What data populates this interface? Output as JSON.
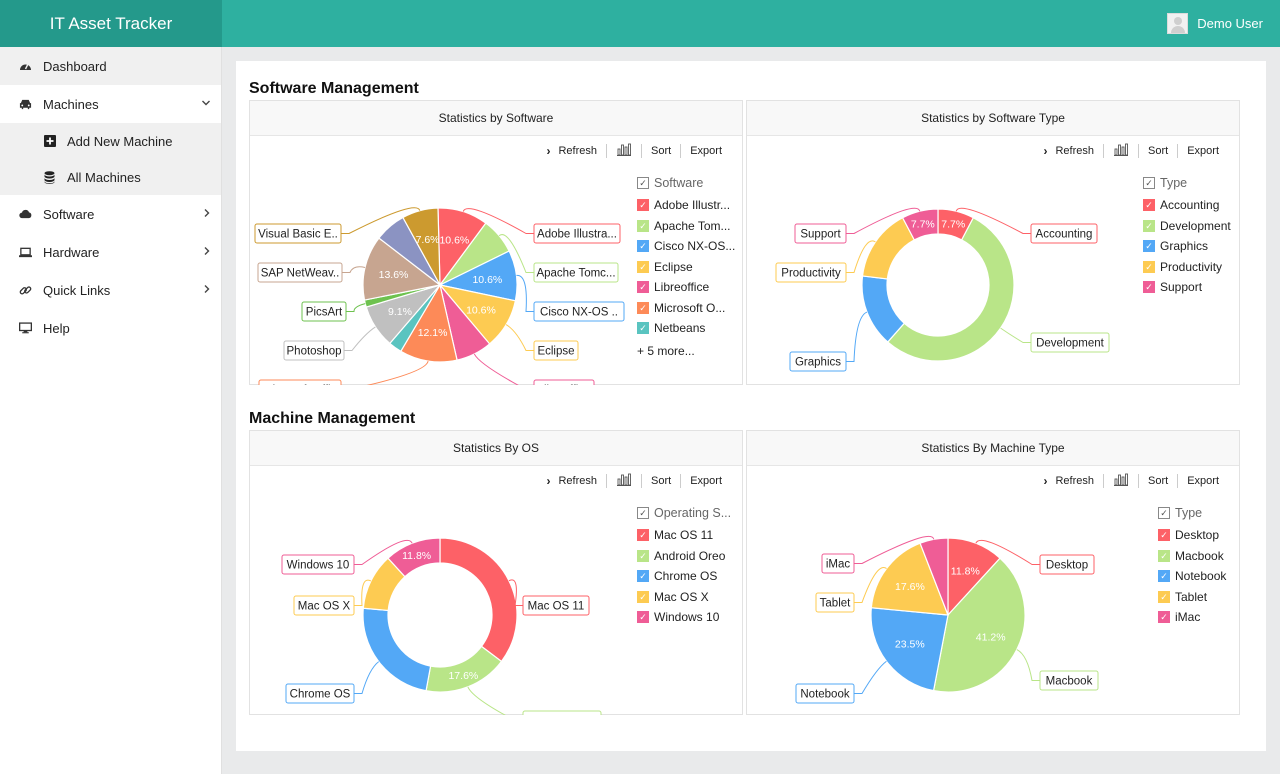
{
  "app": {
    "title": "IT Asset Tracker",
    "user_name": "Demo User"
  },
  "sidebar": {
    "items": [
      {
        "label": "Dashboard",
        "icon": "dashboard-icon"
      },
      {
        "label": "Machines",
        "icon": "car-icon"
      },
      {
        "label": "Add New Machine",
        "icon": "plus-square-icon"
      },
      {
        "label": "All Machines",
        "icon": "database-icon"
      },
      {
        "label": "Software",
        "icon": "cloud-icon"
      },
      {
        "label": "Hardware",
        "icon": "laptop-icon"
      },
      {
        "label": "Quick Links",
        "icon": "link-icon"
      },
      {
        "label": "Help",
        "icon": "desktop-icon"
      }
    ]
  },
  "sections": {
    "software": "Software Management",
    "machine": "Machine Management"
  },
  "toolbar": {
    "refresh": "Refresh",
    "sort": "Sort",
    "export": "Export"
  },
  "cards": [
    {
      "title": "Statistics by Software",
      "legend_header": "Software",
      "legend": [
        "Adobe Illustr...",
        "Apache Tom...",
        "Cisco NX-OS...",
        "Eclipse",
        "Libreoffice",
        "Microsoft O...",
        "Netbeans"
      ],
      "more": "+ 5 more..."
    },
    {
      "title": "Statistics by Software Type",
      "legend_header": "Type",
      "legend": [
        "Accounting",
        "Development",
        "Graphics",
        "Productivity",
        "Support"
      ]
    },
    {
      "title": "Statistics By OS",
      "legend_header": "Operating S...",
      "legend": [
        "Mac OS 11",
        "Android Oreo",
        "Chrome OS",
        "Mac OS X",
        "Windows 10"
      ]
    },
    {
      "title": "Statistics By Machine Type",
      "legend_header": "Type",
      "legend": [
        "Desktop",
        "Macbook",
        "Notebook",
        "Tablet",
        "iMac"
      ]
    }
  ],
  "chart_data": [
    {
      "type": "pie",
      "title": "Statistics by Software",
      "slices": [
        {
          "label": "Adobe Illustra...",
          "value": 10.6,
          "text": "10.6%",
          "color": "#fd6167"
        },
        {
          "label": "Apache Tomc...",
          "value": 7.6,
          "text": "",
          "color": "#b9e588"
        },
        {
          "label": "Cisco NX-OS ..",
          "value": 10.6,
          "text": "10.6%",
          "color": "#53a8f6"
        },
        {
          "label": "Eclipse",
          "value": 10.6,
          "text": "10.6%",
          "color": "#fdcb52"
        },
        {
          "label": "Libreoffice",
          "value": 7.6,
          "text": "",
          "color": "#ef5d96"
        },
        {
          "label": "Microsoft Offi..",
          "value": 12.1,
          "text": "12.1%",
          "color": "#fd8a58"
        },
        {
          "label": "",
          "value": 2.8,
          "text": "",
          "color": "#5ac4c0"
        },
        {
          "label": "Photoshop",
          "value": 9.1,
          "text": "9.1%",
          "color": "#c0c0c0"
        },
        {
          "label": "PicsArt",
          "value": 1.5,
          "text": "",
          "color": "#6ec24f"
        },
        {
          "label": "SAP NetWeav..",
          "value": 13.6,
          "text": "13.6%",
          "color": "#c7a590"
        },
        {
          "label": "",
          "value": 6.6,
          "text": "",
          "color": "#8b93c2"
        },
        {
          "label": "Visual Basic E..",
          "value": 7.6,
          "text": "7.6%",
          "color": "#cc9a2f"
        }
      ]
    },
    {
      "type": "pie",
      "title": "Statistics by Software Type",
      "donut": true,
      "slices": [
        {
          "label": "Accounting",
          "value": 7.7,
          "text": "7.7%",
          "color": "#fd6167"
        },
        {
          "label": "Development",
          "value": 53.8,
          "text": "",
          "color": "#b9e588"
        },
        {
          "label": "Graphics",
          "value": 15.4,
          "text": "",
          "color": "#53a8f6"
        },
        {
          "label": "Productivity",
          "value": 15.4,
          "text": "",
          "color": "#fdcb52"
        },
        {
          "label": "Support",
          "value": 7.7,
          "text": "7.7%",
          "color": "#ef5d96"
        }
      ]
    },
    {
      "type": "pie",
      "title": "Statistics By OS",
      "donut": true,
      "slices": [
        {
          "label": "Mac OS 11",
          "value": 35.3,
          "text": "",
          "color": "#fd6167"
        },
        {
          "label": "Android Oreo",
          "value": 17.6,
          "text": "17.6%",
          "color": "#b9e588"
        },
        {
          "label": "Chrome OS",
          "value": 23.5,
          "text": "",
          "color": "#53a8f6"
        },
        {
          "label": "Mac OS X",
          "value": 11.8,
          "text": "",
          "color": "#fdcb52"
        },
        {
          "label": "Windows 10",
          "value": 11.8,
          "text": "11.8%",
          "color": "#ef5d96"
        }
      ]
    },
    {
      "type": "pie",
      "title": "Statistics By Machine Type",
      "slices": [
        {
          "label": "Desktop",
          "value": 11.8,
          "text": "11.8%",
          "color": "#fd6167"
        },
        {
          "label": "Macbook",
          "value": 41.2,
          "text": "41.2%",
          "color": "#b9e588"
        },
        {
          "label": "Notebook",
          "value": 23.5,
          "text": "23.5%",
          "color": "#53a8f6"
        },
        {
          "label": "Tablet",
          "value": 17.6,
          "text": "17.6%",
          "color": "#fdcb52"
        },
        {
          "label": "iMac",
          "value": 5.9,
          "text": "",
          "color": "#ef5d96"
        }
      ]
    }
  ]
}
